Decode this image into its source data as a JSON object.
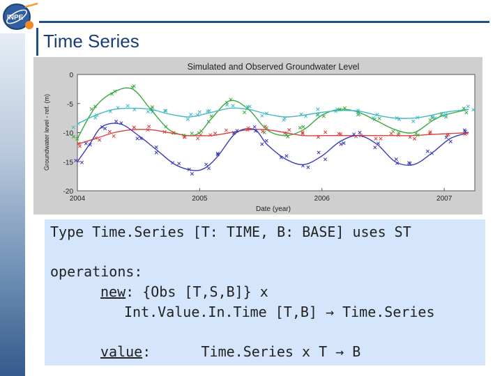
{
  "slide": {
    "title": "Time Series",
    "logo_text": "INPE"
  },
  "code": {
    "line1": "Type Time.Series [T: TIME, B: BASE] uses ST",
    "line2": "operations:",
    "line3_op": "new",
    "line3_rest": ": {Obs [T,S,B]} x",
    "line4": "Int.Value.In.Time [T,B] → Time.Series",
    "line5_op": "value",
    "line5_rest": ":      Time.Series x T → B"
  },
  "chart_data": {
    "type": "line",
    "title": "Simulated and Observed Groundwater Level",
    "xlabel": "Date (year)",
    "ylabel": "Groundwater level - ref. (m)",
    "xlim": [
      2004,
      2007.25
    ],
    "ylim": [
      -20,
      0
    ],
    "xticks": [
      "2004",
      "2005",
      "2006",
      "2007"
    ],
    "yticks": [
      "0",
      "-5",
      "-10",
      "-15",
      "-20"
    ],
    "grid": false,
    "series": [
      {
        "color": "#3aa83a",
        "x": [
          2004.0,
          2004.15,
          2004.3,
          2004.45,
          2004.6,
          2004.75,
          2004.9,
          2005.0,
          2005.1,
          2005.25,
          2005.4,
          2005.55,
          2005.7,
          2005.85,
          2006.0,
          2006.15,
          2006.3,
          2006.45,
          2006.6,
          2006.75,
          2006.9,
          2007.0,
          2007.2
        ],
        "y": [
          -11,
          -5.5,
          -3,
          -2.5,
          -6,
          -9.5,
          -10.5,
          -10,
          -7.5,
          -4.5,
          -6,
          -9.5,
          -10.5,
          -9.5,
          -7,
          -6,
          -6.5,
          -8,
          -9.5,
          -10,
          -8,
          -7,
          -6
        ]
      },
      {
        "color": "#3fb8c4",
        "x": [
          2004.0,
          2004.15,
          2004.3,
          2004.45,
          2004.6,
          2004.75,
          2004.9,
          2005.0,
          2005.1,
          2005.25,
          2005.4,
          2005.55,
          2005.7,
          2005.85,
          2006.0,
          2006.15,
          2006.3,
          2006.45,
          2006.6,
          2006.75,
          2006.9,
          2007.0,
          2007.2
        ],
        "y": [
          -8.5,
          -7,
          -6,
          -5.8,
          -6,
          -6.8,
          -7.3,
          -7,
          -6.5,
          -5.8,
          -6,
          -6.8,
          -7.3,
          -7,
          -6.5,
          -6.2,
          -6.3,
          -7,
          -7.5,
          -7.5,
          -7,
          -6.5,
          -6
        ]
      },
      {
        "color": "#d94040",
        "x": [
          2004.0,
          2004.15,
          2004.3,
          2004.45,
          2004.6,
          2004.75,
          2004.9,
          2005.0,
          2005.1,
          2005.25,
          2005.4,
          2005.55,
          2005.7,
          2005.85,
          2006.0,
          2006.15,
          2006.3,
          2006.45,
          2006.6,
          2006.75,
          2006.9,
          2007.0,
          2007.2
        ],
        "y": [
          -12,
          -11,
          -10,
          -9.5,
          -9.5,
          -10,
          -10.5,
          -10.5,
          -10.5,
          -10,
          -9.5,
          -9.5,
          -10,
          -10.5,
          -10.5,
          -10.5,
          -10.5,
          -10.5,
          -10.5,
          -10.5,
          -10.3,
          -10.2,
          -10
        ]
      },
      {
        "color": "#3a3ab8",
        "x": [
          2004.0,
          2004.1,
          2004.2,
          2004.35,
          2004.5,
          2004.65,
          2004.8,
          2004.95,
          2005.05,
          2005.15,
          2005.3,
          2005.45,
          2005.55,
          2005.7,
          2005.85,
          2006.0,
          2006.15,
          2006.3,
          2006.45,
          2006.6,
          2006.75,
          2006.9,
          2007.05,
          2007.2
        ],
        "y": [
          -15,
          -12,
          -9,
          -8.5,
          -10.5,
          -13,
          -15.5,
          -16.5,
          -16,
          -14,
          -10,
          -9.5,
          -12,
          -14.5,
          -15.5,
          -14,
          -11.5,
          -10.5,
          -12,
          -15,
          -15.5,
          -13.5,
          -11,
          -10
        ]
      }
    ]
  }
}
